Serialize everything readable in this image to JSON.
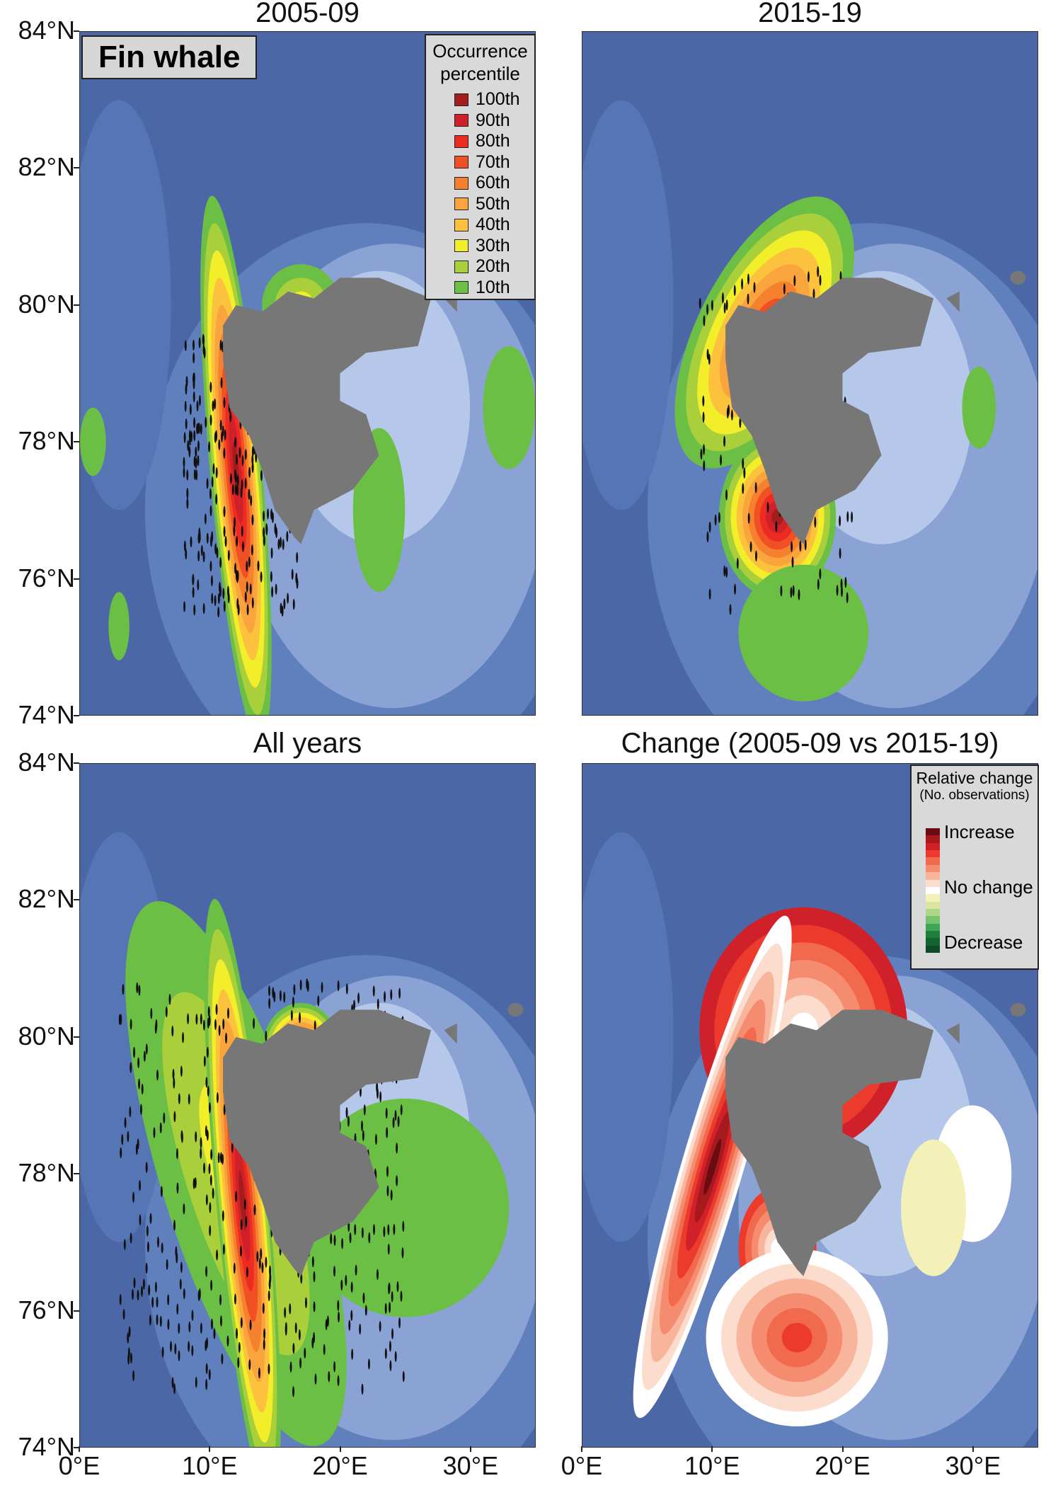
{
  "figure": {
    "species_label": "Fin whale",
    "panels": [
      {
        "title": "2005-09"
      },
      {
        "title": "2015-19"
      },
      {
        "title": "All years"
      },
      {
        "title": "Change (2005-09 vs 2015-19)"
      }
    ],
    "y_axis_labels": [
      "84°N",
      "82°N",
      "80°N",
      "78°N",
      "76°N",
      "74°N"
    ],
    "x_axis_labels": [
      "0°E",
      "10°E",
      "20°E",
      "30°E"
    ],
    "occurrence_legend": {
      "title_line1": "Occurrence",
      "title_line2": "percentile",
      "items": [
        {
          "label": "100th",
          "color": "#a31d1d"
        },
        {
          "label": "90th",
          "color": "#d0202a"
        },
        {
          "label": "80th",
          "color": "#ee2b22"
        },
        {
          "label": "70th",
          "color": "#f05023"
        },
        {
          "label": "60th",
          "color": "#f5812f"
        },
        {
          "label": "50th",
          "color": "#f9a43c"
        },
        {
          "label": "40th",
          "color": "#fcc23d"
        },
        {
          "label": "30th",
          "color": "#f3ee2a"
        },
        {
          "label": "20th",
          "color": "#a9cf3a"
        },
        {
          "label": "10th",
          "color": "#6cbf45"
        }
      ]
    },
    "change_legend": {
      "title": "Relative change",
      "subtitle": "(No. observations)",
      "increase": "Increase",
      "no_change": "No change",
      "decrease": "Decrease",
      "colors": [
        "#6b0b12",
        "#a8191e",
        "#d0202a",
        "#ec3a2c",
        "#f26a4e",
        "#f58b6f",
        "#f9b49c",
        "#fcdccd",
        "#ffffff",
        "#f4f1b8",
        "#d9e6a0",
        "#acd68a",
        "#76c370",
        "#3fa457",
        "#1f7d3e",
        "#156434",
        "#0d4a27"
      ]
    }
  }
}
